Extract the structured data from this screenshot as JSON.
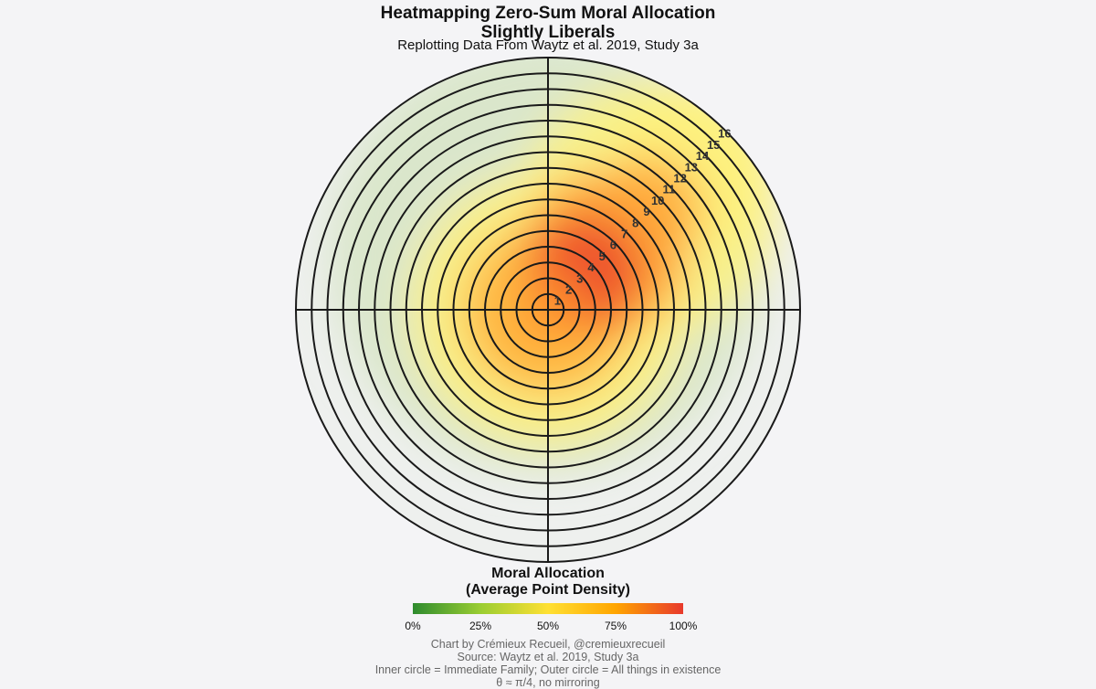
{
  "chart_data": {
    "type": "heatmap",
    "subtype": "polar-concentric-density",
    "title_line1": "Heatmapping Zero-Sum Moral Allocation",
    "title_line2": "Slightly Liberals",
    "subtitle": "Replotting Data From Waytz et al. 2019, Study 3a",
    "rings": [
      1,
      2,
      3,
      4,
      5,
      6,
      7,
      8,
      9,
      10,
      11,
      12,
      13,
      14,
      15,
      16
    ],
    "ring_labels": [
      "1",
      "2",
      "3",
      "4",
      "5",
      "6",
      "7",
      "8",
      "9",
      "10",
      "11",
      "12",
      "13",
      "14",
      "15",
      "16"
    ],
    "theta_label_angle_rad": 0.785,
    "density_peak_ring": 4,
    "legend": {
      "title_line1": "Moral Allocation",
      "title_line2": "(Average Point Density)",
      "ticks": [
        "0%",
        "25%",
        "50%",
        "75%",
        "100%"
      ],
      "colors": [
        "#2e8b2e",
        "#9acd32",
        "#ffe033",
        "#ffa500",
        "#e8392c"
      ]
    },
    "footer": [
      "Chart by Crémieux Recueil, @cremieuxrecueil",
      "Source: Waytz et al. 2019, Study 3a",
      "Inner circle = Immediate Family; Outer circle = All things in existence",
      "θ ≈ π/4, no mirroring"
    ]
  }
}
